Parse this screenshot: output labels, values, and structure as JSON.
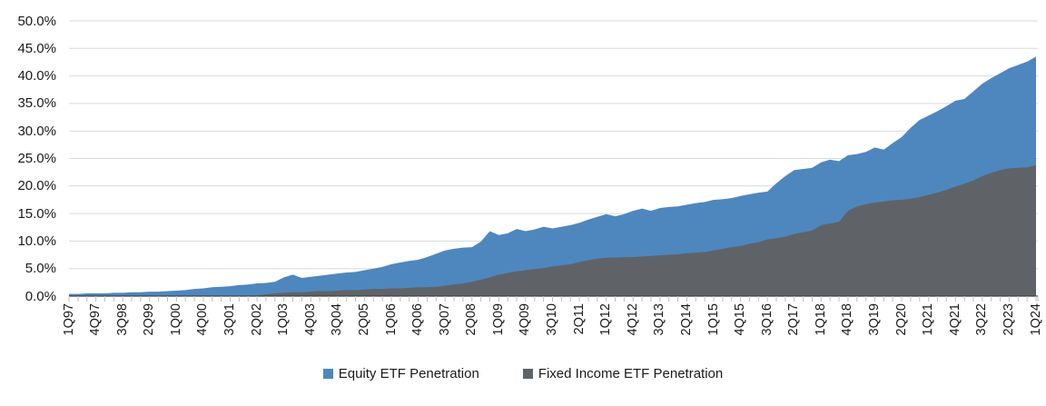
{
  "legend": {
    "equity": "Equity ETF Penetration",
    "fixed_income": "Fixed Income ETF Penetration"
  },
  "colors": {
    "equity_area": "#4e87be",
    "fixed_income_area": "#5f6368",
    "gridline": "#d9d9d9",
    "axis_line": "#404040",
    "tick_mark": "#bfbfbf",
    "label_text": "#1a1a1a",
    "background": "#ffffff"
  },
  "chart_data": {
    "type": "area",
    "mode": "overlay",
    "title": "",
    "xlabel": "",
    "ylabel": "",
    "grid": "horizontal",
    "legend_position": "bottom-center",
    "y_axis": {
      "min": 0,
      "max": 50,
      "step": 5,
      "tick_labels": [
        "0.0%",
        "5.0%",
        "10.0%",
        "15.0%",
        "20.0%",
        "25.0%",
        "30.0%",
        "35.0%",
        "40.0%",
        "45.0%",
        "50.0%"
      ]
    },
    "x_axis": {
      "first_quarter": "1Q97",
      "last_quarter": "1Q24",
      "points": 109,
      "label_every_n_points": 3,
      "tick_labels": [
        "1Q97",
        "4Q97",
        "3Q98",
        "2Q99",
        "1Q00",
        "4Q00",
        "3Q01",
        "2Q02",
        "1Q03",
        "4Q03",
        "3Q04",
        "2Q05",
        "1Q06",
        "4Q06",
        "3Q07",
        "2Q08",
        "1Q09",
        "4Q09",
        "3Q10",
        "2Q11",
        "1Q12",
        "4Q12",
        "3Q13",
        "2Q14",
        "1Q15",
        "4Q15",
        "3Q16",
        "2Q17",
        "1Q18",
        "4Q18",
        "3Q19",
        "2Q20",
        "1Q21",
        "4Q21",
        "3Q22",
        "2Q23",
        "1Q24"
      ]
    },
    "series": [
      {
        "name": "Equity ETF Penetration",
        "color": "#4e87be",
        "values": [
          0.4,
          0.4,
          0.5,
          0.5,
          0.5,
          0.6,
          0.6,
          0.7,
          0.7,
          0.8,
          0.8,
          0.9,
          1.0,
          1.1,
          1.3,
          1.4,
          1.6,
          1.7,
          1.8,
          2.0,
          2.1,
          2.3,
          2.4,
          2.6,
          3.4,
          3.9,
          3.3,
          3.5,
          3.7,
          3.9,
          4.1,
          4.3,
          4.4,
          4.7,
          5.0,
          5.3,
          5.8,
          6.1,
          6.4,
          6.6,
          7.1,
          7.7,
          8.3,
          8.6,
          8.8,
          8.9,
          9.9,
          11.8,
          11.1,
          11.4,
          12.2,
          11.8,
          12.1,
          12.6,
          12.3,
          12.6,
          12.9,
          13.3,
          13.9,
          14.4,
          14.9,
          14.5,
          14.9,
          15.5,
          15.9,
          15.5,
          16.0,
          16.2,
          16.3,
          16.6,
          16.9,
          17.1,
          17.5,
          17.6,
          17.8,
          18.2,
          18.5,
          18.8,
          19.0,
          20.5,
          21.8,
          22.9,
          23.1,
          23.3,
          24.3,
          24.8,
          24.5,
          25.6,
          25.8,
          26.2,
          27.0,
          26.6,
          27.8,
          28.9,
          30.6,
          32.0,
          32.8,
          33.6,
          34.5,
          35.5,
          35.8,
          37.2,
          38.6,
          39.6,
          40.5,
          41.4,
          42.0,
          42.6,
          43.5
        ]
      },
      {
        "name": "Fixed Income ETF Penetration",
        "color": "#5f6368",
        "values": [
          0,
          0,
          0,
          0,
          0,
          0,
          0,
          0,
          0,
          0,
          0,
          0,
          0,
          0,
          0,
          0,
          0,
          0,
          0,
          0,
          0,
          0.1,
          0.3,
          0.5,
          0.6,
          0.7,
          0.7,
          0.8,
          0.9,
          0.9,
          1.0,
          1.1,
          1.1,
          1.2,
          1.3,
          1.3,
          1.4,
          1.4,
          1.5,
          1.6,
          1.6,
          1.7,
          1.9,
          2.1,
          2.3,
          2.6,
          3.0,
          3.4,
          3.9,
          4.2,
          4.5,
          4.7,
          4.9,
          5.1,
          5.4,
          5.6,
          5.8,
          6.2,
          6.5,
          6.8,
          7.0,
          7.0,
          7.1,
          7.1,
          7.2,
          7.3,
          7.4,
          7.5,
          7.6,
          7.8,
          7.9,
          8.0,
          8.3,
          8.6,
          8.9,
          9.1,
          9.5,
          9.8,
          10.3,
          10.5,
          10.8,
          11.3,
          11.6,
          11.9,
          12.9,
          13.2,
          13.5,
          15.5,
          16.3,
          16.7,
          17.0,
          17.2,
          17.4,
          17.5,
          17.7,
          18.0,
          18.4,
          18.8,
          19.3,
          19.9,
          20.4,
          21.0,
          21.8,
          22.4,
          22.9,
          23.2,
          23.3,
          23.4,
          23.8
        ]
      }
    ]
  }
}
